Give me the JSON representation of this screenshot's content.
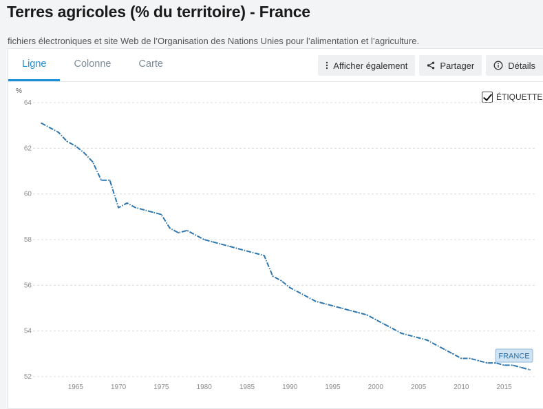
{
  "header": {
    "title": "Terres agricoles (% du territoire) - France",
    "source": "fichiers électroniques et site Web de l’Organisation des Nations Unies pour l’alimentation et l’agriculture."
  },
  "tabs": [
    {
      "label": "Ligne",
      "active": true
    },
    {
      "label": "Colonne",
      "active": false
    },
    {
      "label": "Carte",
      "active": false
    }
  ],
  "actions": {
    "also_show": {
      "label": "Afficher également",
      "icon": "vertical-dots-icon"
    },
    "share": {
      "label": "Partager",
      "icon": "share-icon"
    },
    "details": {
      "label": "Détails",
      "icon": "info-icon"
    }
  },
  "label_toggle": {
    "label": "ÉTIQUETTE",
    "checked": true
  },
  "colors": {
    "accent": "#1b8ed6",
    "series": "#2d75ad",
    "tag_bg": "#cfe3f3"
  },
  "chart_data": {
    "type": "line",
    "unit_label": "%",
    "ylim": [
      52,
      64
    ],
    "yticks": [
      52,
      54,
      56,
      58,
      60,
      62,
      64
    ],
    "xlim": [
      1961,
      2018
    ],
    "xticks": [
      1965,
      1970,
      1975,
      1980,
      1985,
      1990,
      1995,
      2000,
      2005,
      2010,
      2015
    ],
    "grid": true,
    "legend": "none",
    "series": [
      {
        "name": "FRANCE",
        "x": [
          1961,
          1962,
          1963,
          1964,
          1965,
          1966,
          1967,
          1968,
          1969,
          1970,
          1971,
          1972,
          1973,
          1974,
          1975,
          1976,
          1977,
          1978,
          1979,
          1980,
          1981,
          1982,
          1983,
          1984,
          1985,
          1986,
          1987,
          1988,
          1989,
          1990,
          1991,
          1992,
          1993,
          1994,
          1995,
          1996,
          1997,
          1998,
          1999,
          2000,
          2001,
          2002,
          2003,
          2004,
          2005,
          2006,
          2007,
          2008,
          2009,
          2010,
          2011,
          2012,
          2013,
          2014,
          2015,
          2016,
          2017,
          2018
        ],
        "values": [
          63.1,
          62.9,
          62.7,
          62.3,
          62.1,
          61.8,
          61.4,
          60.6,
          60.6,
          59.4,
          59.6,
          59.4,
          59.3,
          59.2,
          59.1,
          58.5,
          58.3,
          58.4,
          58.2,
          58.0,
          57.9,
          57.8,
          57.7,
          57.6,
          57.5,
          57.4,
          57.3,
          56.4,
          56.2,
          55.9,
          55.7,
          55.5,
          55.3,
          55.2,
          55.1,
          55.0,
          54.9,
          54.8,
          54.7,
          54.5,
          54.3,
          54.1,
          53.9,
          53.8,
          53.7,
          53.6,
          53.4,
          53.2,
          53.0,
          52.8,
          52.8,
          52.7,
          52.6,
          52.6,
          52.5,
          52.5,
          52.4,
          52.3
        ]
      }
    ]
  }
}
